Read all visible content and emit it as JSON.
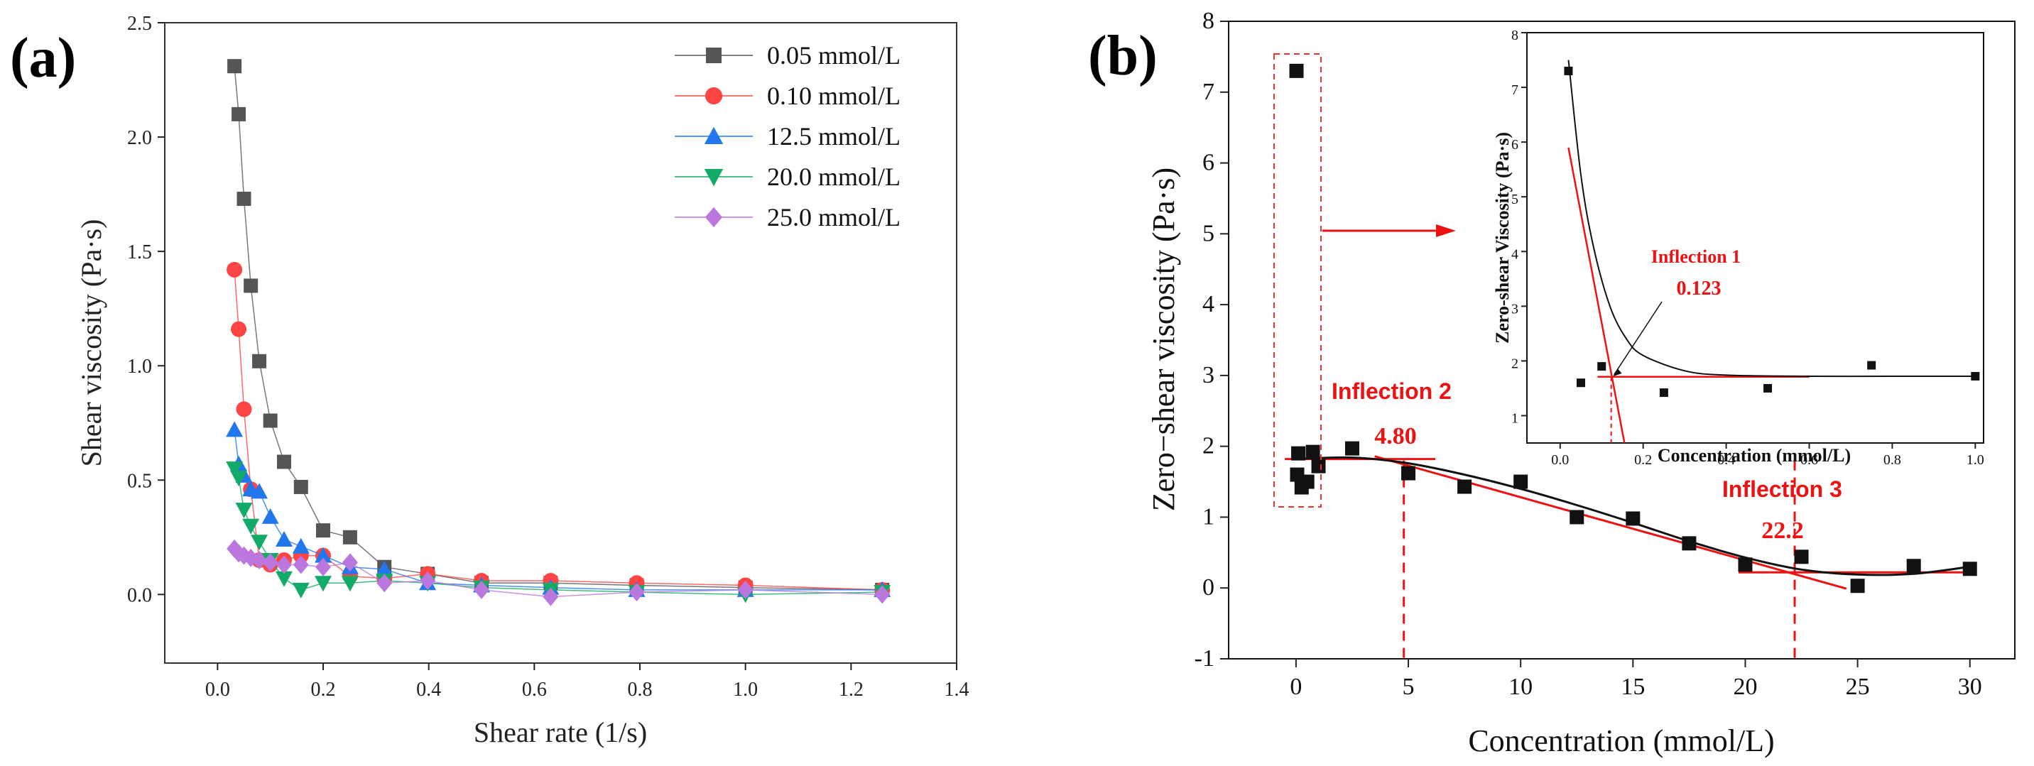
{
  "panels": {
    "a": {
      "label": "(a)"
    },
    "b": {
      "label": "(b)"
    }
  },
  "chart_data": [
    {
      "id": "a",
      "type": "line",
      "title": "",
      "xlabel": "Shear rate (1/s)",
      "ylabel": "Shear viscosity (Pa·s)",
      "xlim": [
        -0.1,
        1.4
      ],
      "ylim": [
        -0.3,
        2.5
      ],
      "xticks": [
        0.0,
        0.2,
        0.4,
        0.6,
        0.8,
        1.0,
        1.2,
        1.4
      ],
      "xtick_labels": [
        "0.0",
        "0.2",
        "0.4",
        "0.6",
        "0.8",
        "1.0",
        "1.2",
        "1.4"
      ],
      "yticks": [
        0.0,
        0.5,
        1.0,
        1.5,
        2.0,
        2.5
      ],
      "ytick_labels": [
        "0.0",
        "0.5",
        "1.0",
        "1.5",
        "2.0",
        "2.5"
      ],
      "legend_position": "top-right",
      "series": [
        {
          "name": "0.05 mmol/L",
          "marker": "square",
          "color": "#555555",
          "x": [
            0.032,
            0.04,
            0.05,
            0.063,
            0.079,
            0.1,
            0.126,
            0.158,
            0.2,
            0.251,
            0.316,
            0.398,
            0.5,
            0.631,
            0.794,
            1.0,
            1.259
          ],
          "y": [
            2.31,
            2.1,
            1.73,
            1.35,
            1.02,
            0.76,
            0.58,
            0.47,
            0.28,
            0.25,
            0.12,
            0.09,
            0.05,
            0.05,
            0.04,
            0.03,
            0.02
          ]
        },
        {
          "name": "0.10 mmol/L",
          "marker": "circle",
          "color": "#ff4444",
          "x": [
            0.032,
            0.04,
            0.05,
            0.063,
            0.079,
            0.1,
            0.126,
            0.158,
            0.2,
            0.251,
            0.316,
            0.398,
            0.5,
            0.631,
            0.794,
            1.0,
            1.259
          ],
          "y": [
            1.42,
            1.16,
            0.81,
            0.46,
            0.15,
            0.13,
            0.15,
            0.17,
            0.17,
            0.08,
            0.07,
            0.09,
            0.06,
            0.06,
            0.05,
            0.04,
            0.02
          ]
        },
        {
          "name": "12.5 mmol/L",
          "marker": "triangle-up",
          "color": "#2277ee",
          "x": [
            0.032,
            0.04,
            0.05,
            0.063,
            0.079,
            0.1,
            0.126,
            0.158,
            0.2,
            0.251,
            0.316,
            0.398,
            0.5,
            0.631,
            0.794,
            1.0,
            1.259
          ],
          "y": [
            0.72,
            0.57,
            0.52,
            0.46,
            0.45,
            0.34,
            0.24,
            0.21,
            0.17,
            0.12,
            0.11,
            0.05,
            0.04,
            0.03,
            0.02,
            0.02,
            0.02
          ]
        },
        {
          "name": "20.0 mmol/L",
          "marker": "triangle-down",
          "color": "#11aa66",
          "x": [
            0.032,
            0.04,
            0.05,
            0.063,
            0.079,
            0.1,
            0.126,
            0.158,
            0.2,
            0.251,
            0.316,
            0.398,
            0.5,
            0.631,
            0.794,
            1.0,
            1.259
          ],
          "y": [
            0.55,
            0.51,
            0.37,
            0.3,
            0.23,
            0.15,
            0.07,
            0.02,
            0.05,
            0.05,
            0.06,
            0.05,
            0.03,
            0.02,
            0.01,
            0.0,
            0.01
          ]
        },
        {
          "name": "25.0 mmol/L",
          "marker": "diamond",
          "color": "#bb77dd",
          "x": [
            0.032,
            0.04,
            0.05,
            0.063,
            0.079,
            0.1,
            0.126,
            0.158,
            0.2,
            0.251,
            0.316,
            0.398,
            0.5,
            0.631,
            0.794,
            1.0,
            1.259
          ],
          "y": [
            0.2,
            0.18,
            0.17,
            0.16,
            0.15,
            0.14,
            0.13,
            0.13,
            0.12,
            0.14,
            0.05,
            0.06,
            0.02,
            -0.01,
            0.01,
            0.02,
            0.0
          ]
        }
      ]
    },
    {
      "id": "b",
      "type": "scatter",
      "title": "",
      "xlabel": "Concentration (mmol/L)",
      "ylabel": "Zero−shear viscosity (Pa·s)",
      "xlim": [
        -3,
        32
      ],
      "ylim": [
        -1,
        8
      ],
      "xticks": [
        0,
        5,
        10,
        15,
        20,
        25,
        30
      ],
      "xtick_labels": [
        "0",
        "5",
        "10",
        "15",
        "20",
        "25",
        "30"
      ],
      "yticks": [
        -1,
        0,
        1,
        2,
        3,
        4,
        5,
        6,
        7,
        8
      ],
      "ytick_labels": [
        "-1",
        "0",
        "1",
        "2",
        "3",
        "4",
        "5",
        "6",
        "7",
        "8"
      ],
      "points": {
        "x": [
          0.02,
          0.05,
          0.1,
          0.25,
          0.5,
          0.75,
          1.0,
          2.5,
          5.0,
          7.5,
          10.0,
          12.5,
          15.0,
          17.5,
          20.0,
          22.5,
          25.0,
          27.5,
          30.0
        ],
        "y": [
          7.3,
          1.6,
          1.9,
          1.42,
          1.5,
          1.92,
          1.72,
          1.97,
          1.62,
          1.43,
          1.5,
          1.0,
          0.98,
          0.63,
          0.33,
          0.44,
          0.03,
          0.31,
          0.27
        ]
      },
      "fit_curve": {
        "x": [
          0,
          2.5,
          5,
          7.5,
          10,
          12.5,
          15,
          17.5,
          20,
          22.5,
          25,
          27.5,
          30
        ],
        "y": [
          1.82,
          1.84,
          1.76,
          1.6,
          1.4,
          1.17,
          0.92,
          0.66,
          0.43,
          0.26,
          0.19,
          0.2,
          0.3
        ]
      },
      "tangent_lines": [
        {
          "x": [
            -0.5,
            6.2
          ],
          "y": [
            1.82,
            1.82
          ]
        },
        {
          "x": [
            3.5,
            24.5
          ],
          "y": [
            1.86,
            -0.01
          ]
        },
        {
          "x": [
            19.7,
            30
          ],
          "y": [
            0.22,
            0.22
          ]
        }
      ],
      "inflections": [
        {
          "name": "Inflection 2",
          "value": "4.80",
          "x": 4.8
        },
        {
          "name": "Inflection 3",
          "value": "22.2",
          "x": 22.2
        }
      ],
      "inset": {
        "xlabel": "Concentration (mmol/L)",
        "ylabel": "Zero-shear Viscosity (Pa·s)",
        "xlim": [
          -0.08,
          1.02
        ],
        "ylim": [
          0.5,
          8
        ],
        "xticks": [
          0.0,
          0.2,
          0.4,
          0.6,
          0.8,
          1.0
        ],
        "xtick_labels": [
          "0.0",
          "0.2",
          "0.4",
          "0.6",
          "0.8",
          "1.0"
        ],
        "yticks": [
          1,
          2,
          3,
          4,
          5,
          6,
          7,
          8
        ],
        "ytick_labels": [
          "1",
          "2",
          "3",
          "4",
          "5",
          "6",
          "7",
          "8"
        ],
        "points": {
          "x": [
            0.02,
            0.05,
            0.1,
            0.25,
            0.5,
            0.75,
            1.0
          ],
          "y": [
            7.3,
            1.6,
            1.9,
            1.42,
            1.5,
            1.92,
            1.72
          ]
        },
        "fit_curve": {
          "x": [
            0.02,
            0.05,
            0.08,
            0.12,
            0.16,
            0.2,
            0.3,
            0.4,
            0.6,
            0.8,
            1.0
          ],
          "y": [
            7.5,
            5.4,
            4.1,
            3.0,
            2.4,
            2.1,
            1.82,
            1.74,
            1.72,
            1.72,
            1.72
          ]
        },
        "tangent_lines": [
          {
            "x": [
              0.09,
              0.6
            ],
            "y": [
              1.71,
              1.71
            ]
          },
          {
            "x": [
              0.02,
              0.155
            ],
            "y": [
              5.9,
              0.5
            ]
          }
        ],
        "inflection": {
          "name": "Inflection 1",
          "value": "0.123",
          "x": 0.123
        }
      }
    }
  ]
}
